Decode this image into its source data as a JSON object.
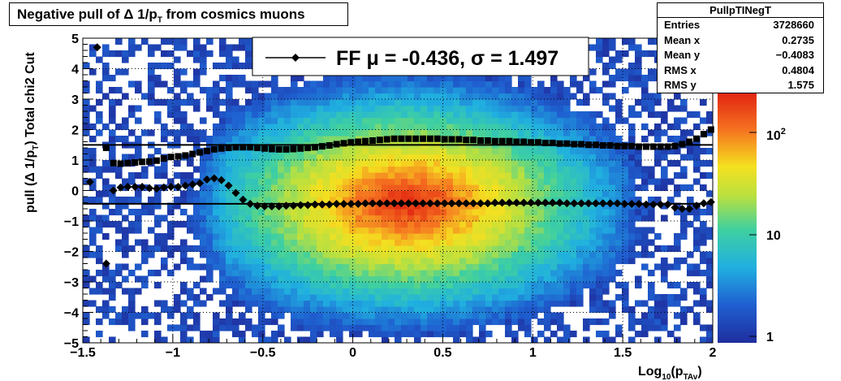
{
  "title": {
    "main": "Negative pull of Δ 1/p",
    "sub": "T",
    "tail": " from cosmics muons"
  },
  "stats": {
    "name": "PullpTINegT",
    "rows": [
      {
        "k": "Entries",
        "v": "3728660"
      },
      {
        "k": "Mean x",
        "v": "0.2735"
      },
      {
        "k": "Mean y",
        "v": "−0.4083"
      },
      {
        "k": "RMS x",
        "v": "0.4804"
      },
      {
        "k": "RMS y",
        "v": "1.575"
      }
    ]
  },
  "legend": {
    "label": "FF μ = -0.436, σ =   1.497"
  },
  "chart_data": {
    "type": "heatmap",
    "xlabel": "Log10(pTAv)",
    "ylabel": "pull (Δ 1/pT)  Total chi2 Cut",
    "xlim": [
      -1.5,
      2
    ],
    "ylim": [
      -5,
      5
    ],
    "x_ticks": [
      "−1.5",
      "−1",
      "−0.5",
      "0",
      "0.5",
      "1",
      "1.5",
      "2"
    ],
    "y_ticks": [
      "−5",
      "−4",
      "−3",
      "−2",
      "−1",
      "0",
      "1",
      "2",
      "3",
      "4",
      "5"
    ],
    "colorbar_ticks": [
      "1",
      "10",
      "10^2"
    ],
    "heatmap_center": [
      0.3,
      -0.4
    ],
    "mean_line": -0.436,
    "sigma_line": 1.497,
    "series": [
      {
        "marker": "diamond",
        "x": [
          -1.46,
          -1.42,
          -1.37,
          -1.33,
          -1.29,
          -1.25,
          -1.21,
          -1.17,
          -1.13,
          -1.09,
          -1.05,
          -1.01,
          -0.97,
          -0.93,
          -0.89,
          -0.85,
          -0.81,
          -0.77,
          -0.73,
          -0.69,
          -0.65,
          -0.61,
          -0.57,
          -0.53,
          -0.49,
          -0.45,
          -0.41,
          -0.37,
          -0.33,
          -0.29,
          -0.25,
          -0.21,
          -0.17,
          -0.13,
          -0.09,
          -0.05,
          -0.01,
          0.03,
          0.07,
          0.11,
          0.15,
          0.19,
          0.23,
          0.27,
          0.31,
          0.35,
          0.39,
          0.43,
          0.47,
          0.51,
          0.55,
          0.59,
          0.63,
          0.67,
          0.71,
          0.75,
          0.79,
          0.83,
          0.87,
          0.91,
          0.95,
          0.99,
          1.03,
          1.07,
          1.11,
          1.15,
          1.19,
          1.23,
          1.27,
          1.31,
          1.35,
          1.39,
          1.43,
          1.47,
          1.51,
          1.55,
          1.59,
          1.63,
          1.67,
          1.71,
          1.75,
          1.79,
          1.83,
          1.87,
          1.91,
          1.95,
          1.99
        ],
        "y": [
          0.28,
          4.7,
          -2.4,
          0.0,
          0.1,
          0.12,
          0.12,
          0.12,
          0.08,
          0.06,
          0.1,
          0.12,
          0.12,
          0.16,
          0.2,
          0.24,
          0.36,
          0.4,
          0.34,
          0.16,
          -0.08,
          -0.3,
          -0.44,
          -0.5,
          -0.52,
          -0.52,
          -0.52,
          -0.5,
          -0.5,
          -0.48,
          -0.48,
          -0.46,
          -0.46,
          -0.46,
          -0.44,
          -0.44,
          -0.44,
          -0.44,
          -0.42,
          -0.42,
          -0.42,
          -0.42,
          -0.42,
          -0.42,
          -0.42,
          -0.42,
          -0.42,
          -0.42,
          -0.42,
          -0.42,
          -0.42,
          -0.42,
          -0.42,
          -0.42,
          -0.42,
          -0.42,
          -0.4,
          -0.4,
          -0.4,
          -0.4,
          -0.4,
          -0.4,
          -0.4,
          -0.4,
          -0.4,
          -0.4,
          -0.42,
          -0.42,
          -0.42,
          -0.42,
          -0.42,
          -0.42,
          -0.42,
          -0.42,
          -0.44,
          -0.44,
          -0.44,
          -0.46,
          -0.46,
          -0.46,
          -0.46,
          -0.56,
          -0.6,
          -0.6,
          -0.5,
          -0.42,
          -0.38
        ]
      },
      {
        "marker": "square",
        "x": [
          -1.37,
          -1.33,
          -1.29,
          -1.25,
          -1.21,
          -1.17,
          -1.13,
          -1.09,
          -1.05,
          -1.01,
          -0.97,
          -0.93,
          -0.89,
          -0.85,
          -0.81,
          -0.77,
          -0.73,
          -0.69,
          -0.65,
          -0.61,
          -0.57,
          -0.53,
          -0.49,
          -0.45,
          -0.41,
          -0.37,
          -0.33,
          -0.29,
          -0.25,
          -0.21,
          -0.17,
          -0.13,
          -0.09,
          -0.05,
          -0.01,
          0.03,
          0.07,
          0.11,
          0.15,
          0.19,
          0.23,
          0.27,
          0.31,
          0.35,
          0.39,
          0.43,
          0.47,
          0.51,
          0.55,
          0.59,
          0.63,
          0.67,
          0.71,
          0.75,
          0.79,
          0.83,
          0.87,
          0.91,
          0.95,
          0.99,
          1.03,
          1.07,
          1.11,
          1.15,
          1.19,
          1.23,
          1.27,
          1.31,
          1.35,
          1.39,
          1.43,
          1.47,
          1.51,
          1.55,
          1.59,
          1.63,
          1.67,
          1.71,
          1.75,
          1.79,
          1.83,
          1.87,
          1.91,
          1.95,
          1.99
        ],
        "y": [
          1.4,
          0.9,
          0.88,
          0.9,
          0.92,
          0.94,
          0.95,
          0.98,
          1.05,
          1.1,
          1.12,
          1.15,
          1.2,
          1.25,
          1.3,
          1.35,
          1.38,
          1.4,
          1.42,
          1.42,
          1.42,
          1.4,
          1.38,
          1.36,
          1.35,
          1.35,
          1.36,
          1.38,
          1.4,
          1.42,
          1.45,
          1.48,
          1.52,
          1.55,
          1.58,
          1.6,
          1.62,
          1.64,
          1.66,
          1.68,
          1.7,
          1.7,
          1.7,
          1.7,
          1.7,
          1.7,
          1.7,
          1.68,
          1.68,
          1.68,
          1.66,
          1.66,
          1.64,
          1.64,
          1.62,
          1.62,
          1.62,
          1.6,
          1.6,
          1.58,
          1.58,
          1.56,
          1.56,
          1.54,
          1.54,
          1.52,
          1.52,
          1.5,
          1.5,
          1.48,
          1.48,
          1.46,
          1.46,
          1.46,
          1.44,
          1.44,
          1.44,
          1.44,
          1.44,
          1.46,
          1.52,
          1.6,
          1.7,
          1.85,
          2.0
        ]
      }
    ]
  }
}
